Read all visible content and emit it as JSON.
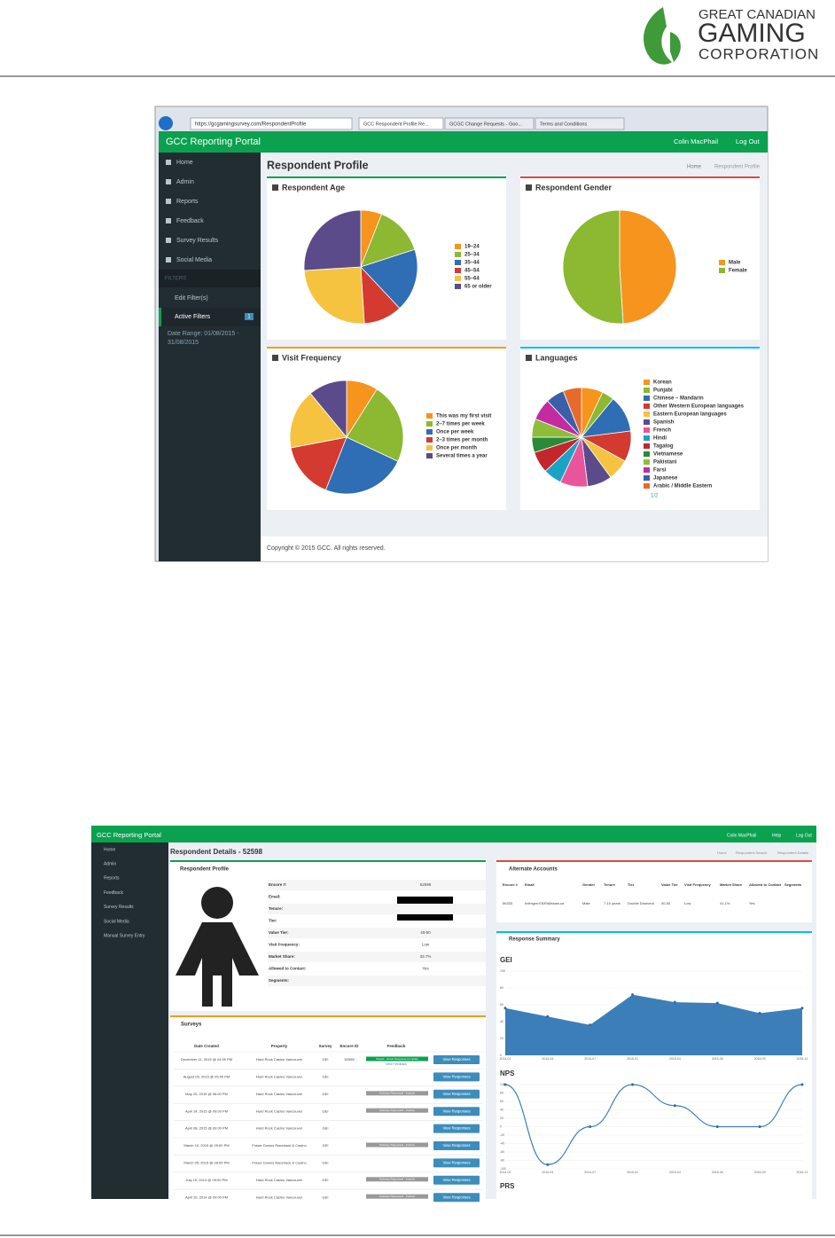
{
  "header": {
    "logo": [
      "GREAT CANADIAN",
      "GAMING",
      "CORPORATION"
    ]
  },
  "screenshot1": {
    "browser": {
      "url": "https://gcgamingsurvey.com/RespondentProfile",
      "tabs": [
        "GCC Respondent Profile Re...",
        "GCGC Change Requests - Goo...",
        "Terms and Conditions"
      ]
    },
    "navbar": {
      "brand": "GCC Reporting Portal",
      "user": "Colin MacPhail",
      "logout": "Log Out"
    },
    "sidebar": {
      "items": [
        "Home",
        "Admin",
        "Reports",
        "Feedback",
        "Survey Results",
        "Social Media"
      ],
      "filters_header": "FILTERS",
      "filter_items": [
        "Edit Filter(s)",
        "Active Filters"
      ],
      "active_badge": 1,
      "date_range": [
        "Date Range: 01/08/2015 -",
        "31/08/2015"
      ]
    },
    "title": "Respondent Profile",
    "breadcrumb": [
      "Home",
      "Respondent Profile"
    ],
    "panels": [
      {
        "title": "Respondent Age",
        "type": "pie",
        "categories": [
          "19–24",
          "25–34",
          "35–44",
          "45–54",
          "55–64",
          "65 or older"
        ],
        "values": [
          6,
          14,
          18,
          11,
          25,
          26
        ],
        "colors": [
          "#f7941d",
          "#8cb832",
          "#2f6db5",
          "#d43a2f",
          "#f5c340",
          "#5b4b8a"
        ]
      },
      {
        "title": "Respondent Gender",
        "type": "pie",
        "categories": [
          "Male",
          "Female"
        ],
        "values": [
          49,
          51
        ],
        "colors": [
          "#f7941d",
          "#8cb832"
        ]
      },
      {
        "title": "Visit Frequency",
        "type": "pie",
        "categories": [
          "This was my first visit",
          "2–7 times per week",
          "Once per week",
          "2–3 times per month",
          "Once per month",
          "Several times a year"
        ],
        "values": [
          9,
          23,
          24,
          16,
          17,
          11
        ],
        "colors": [
          "#f7941d",
          "#8cb832",
          "#2f6db5",
          "#d43a2f",
          "#f5c340",
          "#5b4b8a"
        ]
      },
      {
        "title": "Languages",
        "type": "pie",
        "categories": [
          "Korean",
          "Punjabi",
          "Chinese – Mandarin",
          "Other Western European languages",
          "Eastern European languages",
          "Spanish",
          "French",
          "Hindi",
          "Tagalog",
          "Vietnamese",
          "Pakistani",
          "Farsi",
          "Japanese",
          "Arabic / Middle Eastern"
        ],
        "values": [
          7,
          4,
          12,
          10,
          7,
          8,
          9,
          6,
          7,
          5,
          6,
          7,
          6,
          6
        ],
        "colors": [
          "#f7941d",
          "#8cb832",
          "#2f6db5",
          "#d43a2f",
          "#f5c340",
          "#5b4b8a",
          "#e8559b",
          "#1ba3c6",
          "#c4262e",
          "#2a8a3a",
          "#8fbc3a",
          "#c42ba0",
          "#3b5fa8",
          "#e86a2a"
        ],
        "pager": "1/2"
      }
    ],
    "footer": "Copyright © 2015 GCC. All rights reserved."
  },
  "screenshot2": {
    "navbar": {
      "brand": "GCC Reporting Portal",
      "user": "Colin MacPhail",
      "help": "Help",
      "logout": "Log Out"
    },
    "sidebar": [
      "Home",
      "Admin",
      "Reports",
      "Feedback",
      "Survey Results",
      "Social Media",
      "Manual Survey Entry"
    ],
    "title": "Respondent Details - 52598",
    "breadcrumb": [
      "Home",
      "Respondent Search",
      "Respondent Details"
    ],
    "profile": {
      "title": "Respondent Profile",
      "fields": [
        {
          "label": "Encore #:",
          "value": "52598"
        },
        {
          "label": "Email:"
        },
        {
          "label": "Tenure:"
        },
        {
          "label": "Tier:"
        },
        {
          "label": "Value Tier:",
          "value": "40-50"
        },
        {
          "label": "Visit Frequency:",
          "value": "Low"
        },
        {
          "label": "Market Share:",
          "value": "33.7%"
        },
        {
          "label": "Allowed to Contact:",
          "value": "Yes"
        },
        {
          "label": "Segments:"
        }
      ]
    },
    "surveys": {
      "title": "Surveys",
      "headers": [
        "Date Created",
        "Property",
        "Survey",
        "Encore ID",
        "Feedback"
      ],
      "rows": [
        {
          "date": "December 11, 2015 @ 04:39 PM",
          "property": "Hard Rock Casino Vancouver",
          "survey": "GEI",
          "encore_id": "52598",
          "status": "Closed - Guest Response Complete",
          "link": "View Feedback",
          "action": "View Responses"
        },
        {
          "date": "August 05, 2015 @ 05:00 PM",
          "property": "Hard Rock Casino Vancouver",
          "survey": "GEI",
          "action": "View Responses"
        },
        {
          "date": "May 20, 2015 @ 06:00 PM",
          "property": "Hard Rock Casino Vancouver",
          "survey": "GEI",
          "status": "Followup Requested - Inactive",
          "action": "View Responses"
        },
        {
          "date": "April 14, 2015 @ 09:00 PM",
          "property": "Hard Rock Casino Vancouver",
          "survey": "GEI",
          "status": "Followup Requested - Inactive",
          "action": "View Responses"
        },
        {
          "date": "April 08, 2015 @ 09:00 PM",
          "property": "Hard Rock Casino Vancouver",
          "survey": "GEI",
          "action": "View Responses"
        },
        {
          "date": "March 10, 2015 @ 09:00 PM",
          "property": "Fraser Downs Racetrack & Casino",
          "survey": "GEI",
          "status": "Followup Requested - Inactive",
          "action": "View Responses"
        },
        {
          "date": "March 05, 2015 @ 09:00 PM",
          "property": "Fraser Downs Racetrack & Casino",
          "survey": "GEI",
          "action": "View Responses"
        },
        {
          "date": "July 15, 2014 @ 09:00 PM",
          "property": "Hard Rock Casino Vancouver",
          "survey": "GEI",
          "status": "Followup Requested - Inactive",
          "action": "View Responses"
        },
        {
          "date": "April 20, 2014 @ 09:00 PM",
          "property": "Hard Rock Casino Vancouver",
          "survey": "GEI",
          "status": "Followup Requested - Inactive",
          "action": "View Responses"
        }
      ]
    },
    "alternate": {
      "title": "Alternate Accounts",
      "headers": [
        "Encore #",
        "Email",
        "Gender",
        "Tenure",
        "Tier",
        "Value Tier",
        "Visit Frequency",
        "Market Share",
        "Allowed to Contact",
        "Segments"
      ],
      "row": [
        "56333",
        "holmgren7839@shaw.ca",
        "Male",
        "7-10 years",
        "Double Diamond",
        "40-50",
        "Low",
        "41.1%",
        "Yes"
      ]
    },
    "summary": {
      "title": "Response Summary",
      "charts": [
        {
          "title": "GEI",
          "type": "area",
          "categories": [
            "2014-01",
            "2014-04",
            "2014-07",
            "2015-01",
            "2015-04",
            "2015-06",
            "2015-09",
            "2015-12"
          ],
          "values": [
            56,
            46,
            36,
            72,
            63,
            62,
            50,
            56
          ],
          "ylim": [
            0,
            100
          ],
          "yticks": [
            0,
            20,
            40,
            60,
            80,
            100
          ],
          "color": "#3c7fb8"
        },
        {
          "title": "NPS",
          "type": "line",
          "categories": [
            "2014-02",
            "2014-04",
            "2014-07",
            "2015-01",
            "2015-04",
            "2015-06",
            "2015-09",
            "2015-12"
          ],
          "values": [
            100,
            -90,
            0,
            100,
            50,
            0,
            0,
            100
          ],
          "ylim": [
            -100,
            100
          ],
          "yticks": [
            -100,
            -80,
            -60,
            -40,
            -20,
            0,
            20,
            40,
            60,
            80,
            100
          ],
          "color": "#3c7fb8"
        },
        {
          "title": "PRS"
        }
      ]
    }
  }
}
